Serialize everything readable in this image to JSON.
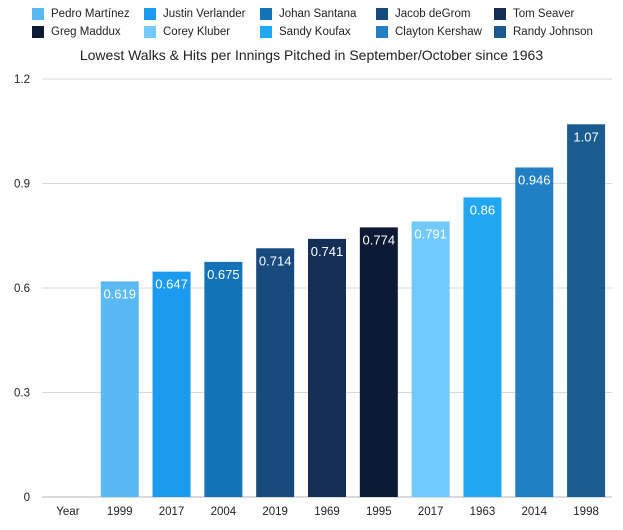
{
  "chart_data": {
    "type": "bar",
    "title": "Lowest Walks & Hits per Innings Pitched in September/October since 1963",
    "xlabel": "",
    "ylabel": "",
    "ylim": [
      0,
      1.2
    ],
    "yticks": [
      "0",
      "0.3",
      "0.6",
      "0.9",
      "1.2"
    ],
    "first_category": "Year",
    "categories": [
      "1999",
      "2017",
      "2004",
      "2019",
      "1969",
      "1995",
      "2017",
      "1963",
      "2014",
      "1998"
    ],
    "values": [
      0.619,
      0.647,
      0.675,
      0.714,
      0.741,
      0.774,
      0.791,
      0.86,
      0.946,
      1.07
    ],
    "value_labels": [
      "0.619",
      "0.647",
      "0.675",
      "0.714",
      "0.741",
      "0.774",
      "0.791",
      "0.86",
      "0.946",
      "1.07"
    ],
    "series": [
      {
        "name": "Pedro Martínez",
        "color": "#5ab8f2"
      },
      {
        "name": "Justin Verlander",
        "color": "#1a9bf0"
      },
      {
        "name": "Johan Santana",
        "color": "#1273b8"
      },
      {
        "name": "Jacob deGrom",
        "color": "#184a7e"
      },
      {
        "name": "Tom Seaver",
        "color": "#142f58"
      },
      {
        "name": "Greg Maddux",
        "color": "#0c1a35"
      },
      {
        "name": "Corey Kluber",
        "color": "#72c9fb"
      },
      {
        "name": "Sandy Koufax",
        "color": "#21a6f2"
      },
      {
        "name": "Clayton Kershaw",
        "color": "#2180c4"
      },
      {
        "name": "Randy Johnson",
        "color": "#1a5c91"
      }
    ],
    "legend_position": "top"
  }
}
